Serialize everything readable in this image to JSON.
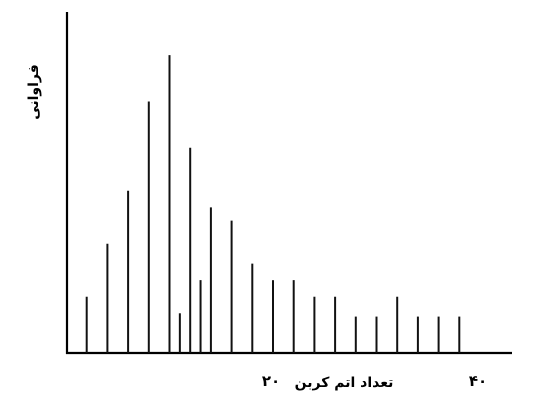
{
  "chart_data": {
    "type": "bar",
    "title": "",
    "xlabel": "تعداد اتم کربن",
    "ylabel": "فراوانی",
    "x_ticks": [
      {
        "value": 20,
        "label": "۲۰"
      },
      {
        "value": 40,
        "label": "۴۰"
      }
    ],
    "xlim": [
      0,
      40
    ],
    "ylim": [
      0,
      100
    ],
    "grid": false,
    "series": [
      {
        "x": [
          2,
          4,
          6,
          8,
          10,
          11,
          12,
          13,
          14,
          16,
          18,
          20,
          22,
          24,
          26,
          28,
          30,
          32,
          34,
          36,
          38
        ],
        "values": [
          17,
          33,
          49,
          76,
          90,
          12,
          62,
          22,
          44,
          40,
          27,
          22,
          22,
          17,
          17,
          11,
          11,
          17,
          11,
          11,
          11
        ]
      }
    ]
  }
}
